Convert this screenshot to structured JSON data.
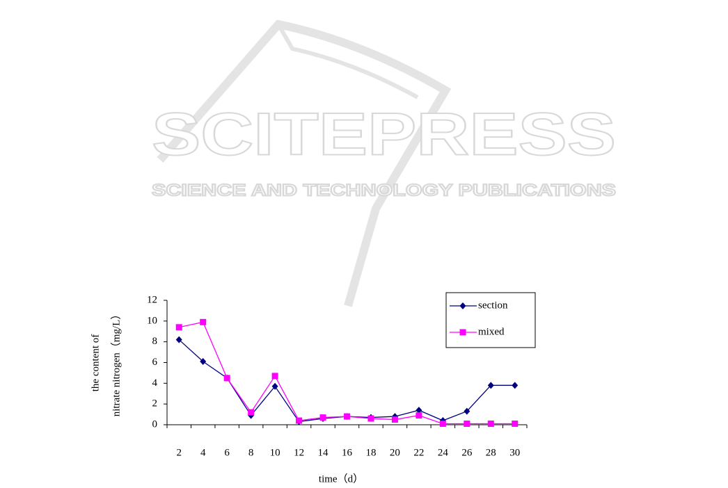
{
  "watermark": {
    "title": "SCITEPRESS",
    "subtitle": "SCIENCE AND TECHNOLOGY PUBLICATIONS"
  },
  "chart_data": {
    "type": "line",
    "y_label_lines": [
      "the content of",
      "nitrate nitrogen（mg/L）"
    ],
    "x_label": "time（d）",
    "categories": [
      2,
      4,
      6,
      8,
      10,
      12,
      14,
      16,
      18,
      20,
      22,
      24,
      26,
      28,
      30
    ],
    "series": [
      {
        "name": "section",
        "color": "#000080",
        "marker": "diamond",
        "values": [
          8.2,
          6.1,
          4.5,
          0.9,
          3.7,
          0.3,
          0.6,
          0.8,
          0.7,
          0.8,
          1.4,
          0.4,
          1.3,
          3.8,
          3.8
        ]
      },
      {
        "name": "mixed",
        "color": "#ff00ff",
        "marker": "square",
        "values": [
          9.4,
          9.9,
          4.5,
          1.2,
          4.7,
          0.4,
          0.7,
          0.8,
          0.6,
          0.5,
          0.9,
          0.1,
          0.1,
          0.1,
          0.1
        ]
      }
    ],
    "ylim": [
      0,
      12
    ],
    "yticks": [
      0,
      2,
      4,
      6,
      8,
      10,
      12
    ],
    "grid": false,
    "legend": "upper right"
  }
}
